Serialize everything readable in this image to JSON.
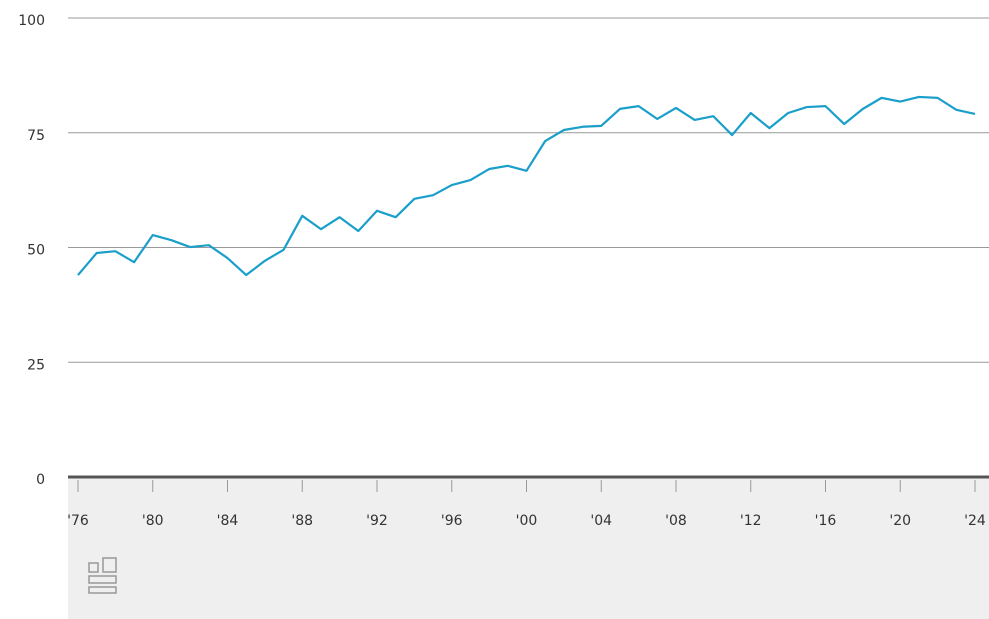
{
  "chart_data": {
    "type": "line",
    "categories": [
      "'76",
      null,
      null,
      null,
      "'80",
      null,
      null,
      null,
      "'84",
      null,
      null,
      null,
      "'88",
      null,
      null,
      null,
      "'92",
      null,
      null,
      null,
      "'96",
      null,
      null,
      null,
      "'00",
      null,
      null,
      null,
      "'04",
      null,
      null,
      null,
      "'08",
      null,
      null,
      null,
      "'12",
      null,
      null,
      null,
      "'16",
      null,
      null,
      null,
      "'20",
      null,
      null,
      null,
      "'24"
    ],
    "series": [
      {
        "color": "#1a9fca",
        "values": [
          44.0,
          48.8,
          49.2,
          46.8,
          52.7,
          51.6,
          50.1,
          50.5,
          47.7,
          44.0,
          47.1,
          49.5,
          56.9,
          54.0,
          56.6,
          53.6,
          58.0,
          56.6,
          60.6,
          61.4,
          63.6,
          64.7,
          67.1,
          67.8,
          66.7,
          73.2,
          75.6,
          76.3,
          76.5,
          80.2,
          80.8,
          78.0,
          80.4,
          77.8,
          78.6,
          74.5,
          79.3,
          76.0,
          79.3,
          80.6,
          80.8,
          76.9,
          80.2,
          82.6,
          81.8,
          82.8,
          82.6,
          80.0,
          79.1
        ]
      }
    ],
    "ylim": [
      0,
      100
    ],
    "yticks": [
      0,
      25,
      50,
      75,
      100
    ],
    "grid": true
  }
}
